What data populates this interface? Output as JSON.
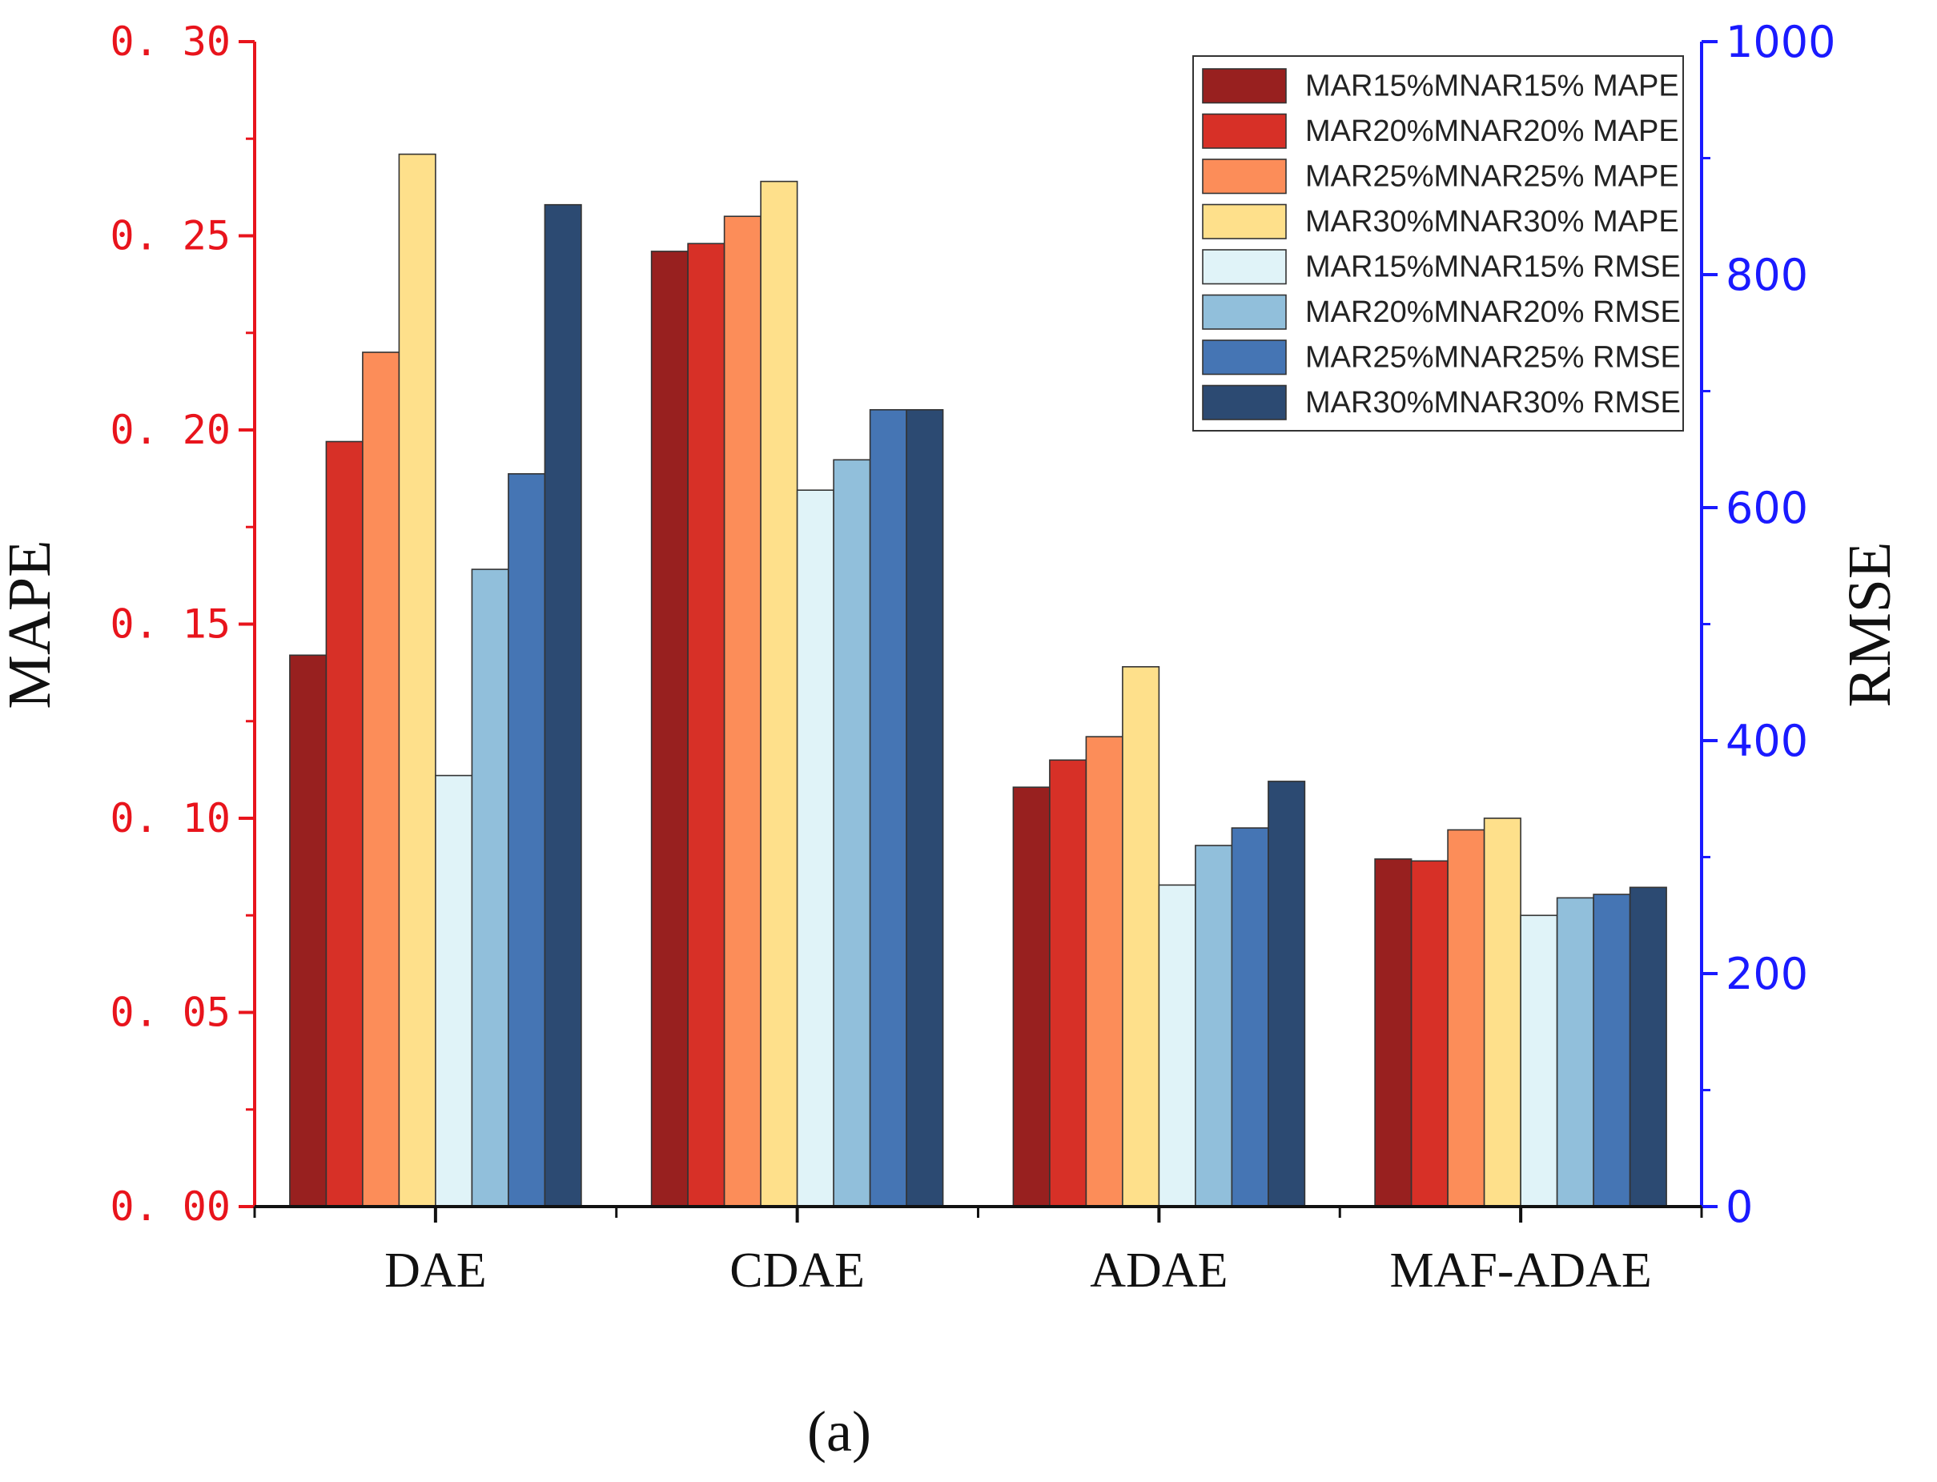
{
  "chart_data": {
    "type": "bar",
    "categories": [
      "DAE",
      "CDAE",
      "ADAE",
      "MAF-ADAE"
    ],
    "ylabel_left": "MAPE",
    "ylabel_right": "RMSE",
    "ylim_left": [
      0,
      0.3
    ],
    "ylim_right": [
      0,
      1000
    ],
    "left_tick_labels": [
      "0. 00",
      "0. 05",
      "0. 10",
      "0. 15",
      "0. 20",
      "0. 25",
      "0. 30"
    ],
    "right_tick_labels": [
      "0",
      "200",
      "400",
      "600",
      "800",
      "1000"
    ],
    "legend_position": "top-right",
    "grid": false,
    "series": [
      {
        "name": "MAR15%MNAR15% MAPE",
        "axis": "left",
        "color": "#98201f",
        "values": [
          0.142,
          0.246,
          0.108,
          0.0895
        ]
      },
      {
        "name": "MAR20%MNAR20% MAPE",
        "axis": "left",
        "color": "#d73027",
        "values": [
          0.197,
          0.248,
          0.115,
          0.089
        ]
      },
      {
        "name": "MAR25%MNAR25% MAPE",
        "axis": "left",
        "color": "#fc8d59",
        "values": [
          0.22,
          0.255,
          0.121,
          0.097
        ]
      },
      {
        "name": "MAR30%MNAR30% MAPE",
        "axis": "left",
        "color": "#fee08b",
        "values": [
          0.271,
          0.264,
          0.139,
          0.1
        ]
      },
      {
        "name": "MAR15%MNAR15% RMSE",
        "axis": "right",
        "color": "#e0f3f8",
        "values": [
          370,
          615,
          276,
          250
        ]
      },
      {
        "name": "MAR20%MNAR20% RMSE",
        "axis": "right",
        "color": "#91bfdb",
        "values": [
          547,
          641,
          310,
          265
        ]
      },
      {
        "name": "MAR25%MNAR25% RMSE",
        "axis": "right",
        "color": "#4575b4",
        "values": [
          629,
          684,
          325,
          268
        ]
      },
      {
        "name": "MAR30%MNAR30% RMSE",
        "axis": "right",
        "color": "#2c4a72",
        "values": [
          860,
          684,
          365,
          274
        ]
      }
    ],
    "left_axis_color": "#e8141c",
    "right_axis_color": "#1a1aff",
    "caption": "(a)"
  }
}
